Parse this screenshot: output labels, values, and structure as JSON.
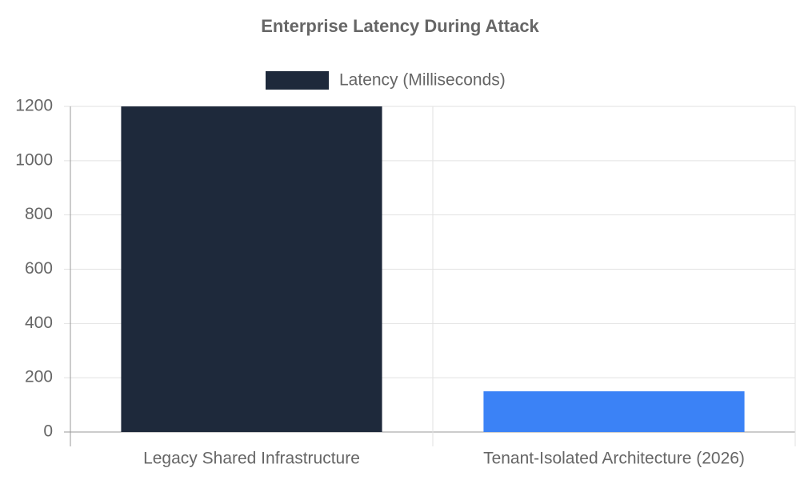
{
  "chart_data": {
    "type": "bar",
    "title": "Enterprise Latency During Attack",
    "categories": [
      "Legacy Shared Infrastructure",
      "Tenant-Isolated Architecture (2026)"
    ],
    "series": [
      {
        "name": "Latency (Milliseconds)",
        "colors": [
          "#1e293b",
          "#3b82f6"
        ],
        "values": [
          1200,
          150
        ]
      }
    ],
    "ylim": [
      0,
      1200
    ],
    "yticks": [
      0,
      200,
      400,
      600,
      800,
      1000,
      1200
    ],
    "grid": true,
    "legend": "top"
  }
}
